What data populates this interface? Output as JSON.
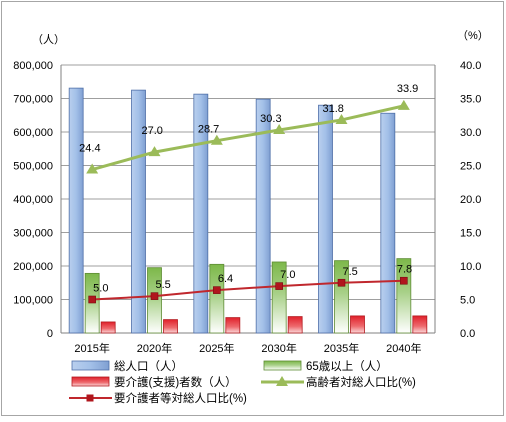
{
  "chart_data": {
    "type": "bar",
    "categories": [
      "2015年",
      "2020年",
      "2025年",
      "2030年",
      "2035年",
      "2040年"
    ],
    "left_axis": {
      "unit": "（人）",
      "ylim": [
        0,
        800000
      ],
      "ticks": [
        "0",
        "100,000",
        "200,000",
        "300,000",
        "400,000",
        "500,000",
        "600,000",
        "700,000",
        "800,000"
      ]
    },
    "right_axis": {
      "unit": "（%）",
      "ylim": [
        0,
        40
      ],
      "ticks": [
        "0.0",
        "5.0",
        "10.0",
        "15.0",
        "20.0",
        "25.0",
        "30.0",
        "35.0",
        "40.0"
      ]
    },
    "grid": true,
    "legend_position": "bottom",
    "series": [
      {
        "name": "総人口（人）",
        "type": "bar",
        "axis": "left",
        "color": "#8eb4e3",
        "values": [
          731000,
          725000,
          713000,
          698000,
          680000,
          656000
        ]
      },
      {
        "name": "65歳以上（人）",
        "type": "bar",
        "axis": "left",
        "color": "#92c050",
        "values": [
          178000,
          195000,
          205000,
          212000,
          216000,
          222000
        ]
      },
      {
        "name": "要介護(支援)者数（人）",
        "type": "bar",
        "axis": "left",
        "color": "#e0202a",
        "values": [
          33000,
          40000,
          46000,
          49000,
          51000,
          51000
        ]
      },
      {
        "name": "高齢者対総人口比(%)",
        "type": "line",
        "axis": "right",
        "color": "#9bbb59",
        "marker": "triangle",
        "values": [
          24.4,
          27.0,
          28.7,
          30.3,
          31.8,
          33.9
        ],
        "labels": [
          "24.4",
          "27.0",
          "28.7",
          "30.3",
          "31.8",
          "33.9"
        ]
      },
      {
        "name": "要介護者等対総人口比(%)",
        "type": "line",
        "axis": "right",
        "color": "#c0272d",
        "marker": "square",
        "values": [
          5.0,
          5.5,
          6.4,
          7.0,
          7.5,
          7.8
        ],
        "labels": [
          "5.0",
          "5.5",
          "6.4",
          "7.0",
          "7.5",
          "7.8"
        ]
      }
    ]
  }
}
